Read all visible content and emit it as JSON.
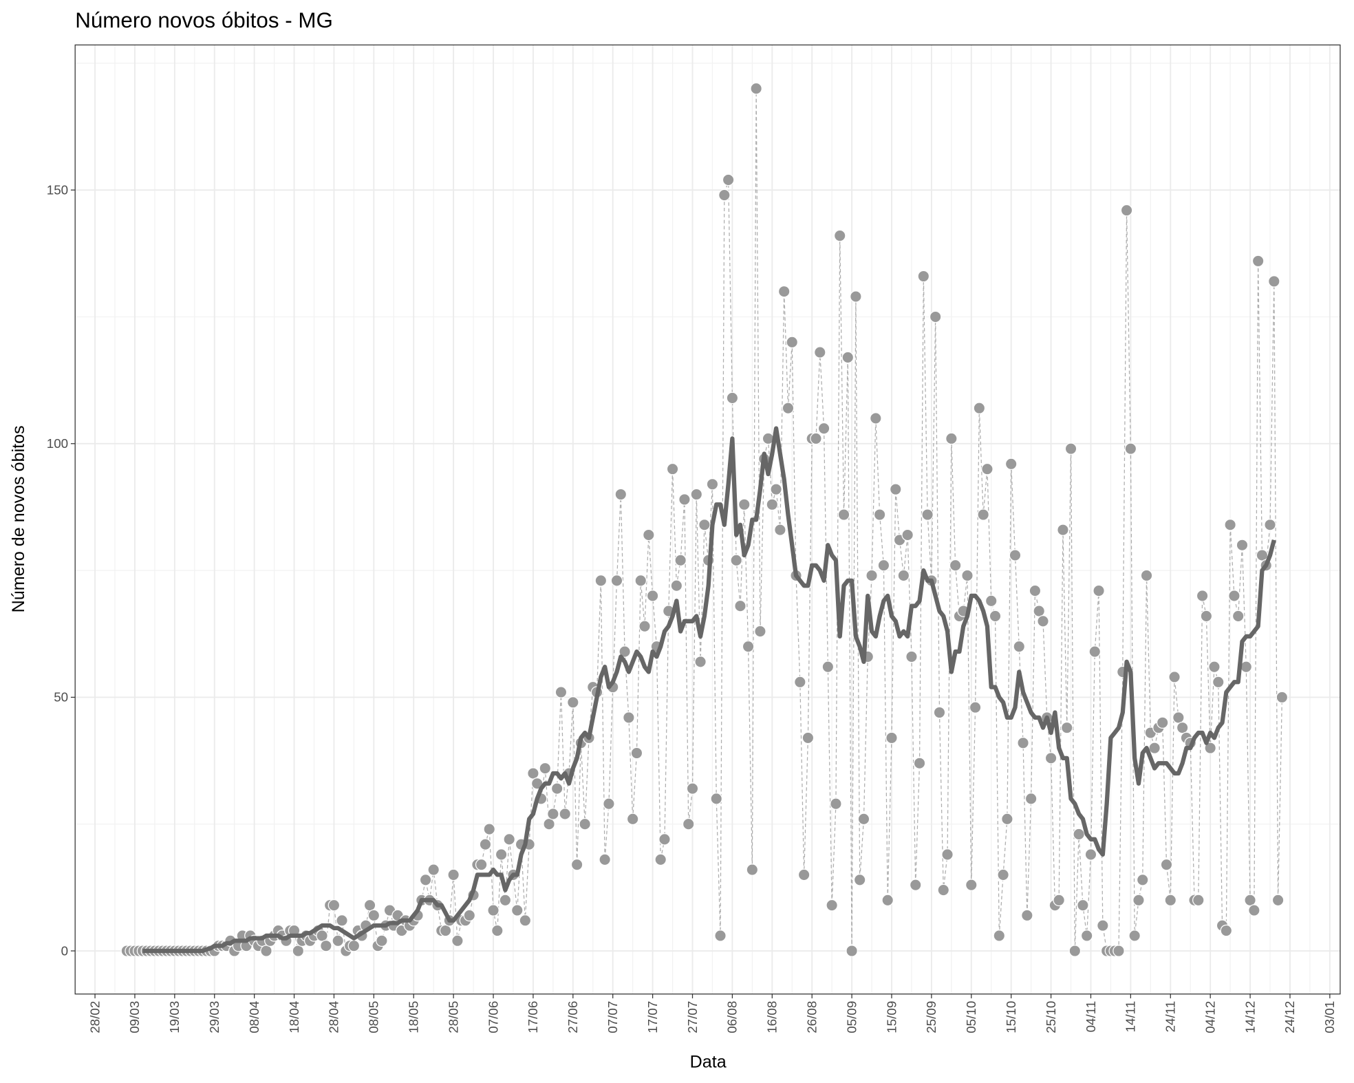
{
  "chart_data": {
    "type": "line",
    "title": "Número novos óbitos - MG",
    "x_label": "Data",
    "y_label": "Número de novos óbitos",
    "categories": [
      "28/02",
      null,
      null,
      null,
      null,
      null,
      null,
      null,
      null,
      null,
      "09/03",
      null,
      null,
      null,
      null,
      null,
      null,
      null,
      null,
      null,
      "19/03",
      null,
      null,
      null,
      null,
      null,
      null,
      null,
      null,
      null,
      "29/03",
      null,
      null,
      null,
      null,
      null,
      null,
      null,
      null,
      null,
      "08/04",
      null,
      null,
      null,
      null,
      null,
      null,
      null,
      null,
      null,
      "18/04",
      null,
      null,
      null,
      null,
      null,
      null,
      null,
      null,
      null,
      "28/04",
      null,
      null,
      null,
      null,
      null,
      null,
      null,
      null,
      null,
      "08/05",
      null,
      null,
      null,
      null,
      null,
      null,
      null,
      null,
      null,
      "18/05",
      null,
      null,
      null,
      null,
      null,
      null,
      null,
      null,
      null,
      "28/05",
      null,
      null,
      null,
      null,
      null,
      null,
      null,
      null,
      null,
      "07/06",
      null,
      null,
      null,
      null,
      null,
      null,
      null,
      null,
      null,
      "17/06",
      null,
      null,
      null,
      null,
      null,
      null,
      null,
      null,
      null,
      "27/06",
      null,
      null,
      null,
      null,
      null,
      null,
      null,
      null,
      null,
      "07/07",
      null,
      null,
      null,
      null,
      null,
      null,
      null,
      null,
      null,
      "17/07",
      null,
      null,
      null,
      null,
      null,
      null,
      null,
      null,
      null,
      "27/07",
      null,
      null,
      null,
      null,
      null,
      null,
      null,
      null,
      null,
      "06/08",
      null,
      null,
      null,
      null,
      null,
      null,
      null,
      null,
      null,
      "16/08",
      null,
      null,
      null,
      null,
      null,
      null,
      null,
      null,
      null,
      "26/08",
      null,
      null,
      null,
      null,
      null,
      null,
      null,
      null,
      null,
      "05/09",
      null,
      null,
      null,
      null,
      null,
      null,
      null,
      null,
      null,
      "15/09",
      null,
      null,
      null,
      null,
      null,
      null,
      null,
      null,
      null,
      "25/09",
      null,
      null,
      null,
      null,
      null,
      null,
      null,
      null,
      null,
      "05/10",
      null,
      null,
      null,
      null,
      null,
      null,
      null,
      null,
      null,
      "15/10",
      null,
      null,
      null,
      null,
      null,
      null,
      null,
      null,
      null,
      "25/10",
      null,
      null,
      null,
      null,
      null,
      null,
      null,
      null,
      null,
      "04/11",
      null,
      null,
      null,
      null,
      null,
      null,
      null,
      null,
      null,
      "14/11",
      null,
      null,
      null,
      null,
      null,
      null,
      null,
      null,
      null,
      "24/11",
      null,
      null,
      null,
      null,
      null,
      null,
      null,
      null,
      null,
      "04/12",
      null,
      null,
      null,
      null,
      null,
      null,
      null,
      null,
      null,
      "14/12",
      null,
      null,
      null,
      null,
      null,
      null,
      null,
      null,
      null,
      "24/12",
      null,
      null,
      null,
      null,
      null,
      null,
      null,
      null,
      null,
      "03/01"
    ],
    "series": [
      {
        "color": "#999999",
        "dashed": true,
        "points": true,
        "values": [
          null,
          null,
          null,
          null,
          null,
          null,
          null,
          null,
          0,
          0,
          0,
          0,
          0,
          0,
          0,
          0,
          0,
          0,
          0,
          0,
          0,
          0,
          0,
          0,
          0,
          0,
          0,
          0,
          0,
          0,
          0,
          1,
          1,
          1,
          2,
          0,
          1,
          3,
          1,
          3,
          2,
          1,
          2,
          0,
          2,
          3,
          4,
          3,
          2,
          4,
          4,
          0,
          2,
          3,
          2,
          3,
          4,
          3,
          1,
          9,
          9,
          2,
          6,
          0,
          1,
          1,
          4,
          3,
          5,
          9,
          7,
          1,
          2,
          5,
          8,
          5,
          7,
          4,
          6,
          5,
          6,
          7,
          10,
          14,
          10,
          16,
          9,
          4,
          4,
          6,
          15,
          2,
          6,
          6,
          7,
          11,
          17,
          17,
          21,
          24,
          8,
          4,
          19,
          10,
          22,
          15,
          8,
          21,
          6,
          21,
          35,
          33,
          30,
          36,
          25,
          27,
          32,
          51,
          27,
          35,
          49,
          17,
          41,
          25,
          42,
          52,
          51,
          73,
          18,
          29,
          52,
          73,
          90,
          59,
          46,
          26,
          39,
          73,
          64,
          82,
          70,
          60,
          18,
          22,
          67,
          95,
          72,
          77,
          89,
          25,
          32,
          90,
          57,
          84,
          77,
          92,
          30,
          3,
          149,
          152,
          109,
          77,
          68,
          88,
          60,
          16,
          170,
          63,
          97,
          101,
          88,
          91,
          83,
          130,
          107,
          120,
          74,
          53,
          15,
          42,
          101,
          101,
          118,
          103,
          56,
          9,
          29,
          141,
          86,
          117,
          0,
          129,
          14,
          26,
          58,
          74,
          105,
          86,
          76,
          10,
          42,
          91,
          81,
          74,
          82,
          58,
          13,
          37,
          133,
          86,
          73,
          125,
          47,
          12,
          19,
          101,
          76,
          66,
          67,
          74,
          13,
          48,
          107,
          86,
          95,
          69,
          66,
          3,
          15,
          26,
          96,
          78,
          60,
          41,
          7,
          30,
          71,
          67,
          65,
          46,
          38,
          9,
          10,
          83,
          44,
          99,
          0,
          23,
          9,
          3,
          19,
          59,
          71,
          5,
          0,
          0,
          0,
          0,
          55,
          146,
          99,
          3,
          10,
          14,
          74,
          43,
          40,
          44,
          45,
          17,
          10,
          54,
          46,
          44,
          42,
          41,
          10,
          10,
          70,
          66,
          40,
          56,
          53,
          5,
          4,
          84,
          70,
          66,
          80,
          56,
          10,
          8,
          136,
          78,
          76,
          84,
          132,
          10,
          50,
          null,
          null,
          null,
          null,
          null,
          null,
          null,
          null,
          null,
          null,
          null,
          null
        ]
      },
      {
        "color": "#666666",
        "dashed": false,
        "points": false,
        "values": [
          null,
          null,
          null,
          null,
          null,
          null,
          null,
          null,
          null,
          null,
          null,
          null,
          0,
          0,
          0,
          0,
          0,
          0,
          0,
          0,
          0,
          0,
          0,
          0,
          0,
          0,
          0,
          0,
          0.3,
          0.5,
          1,
          1,
          1,
          1.5,
          1.5,
          2,
          2,
          2,
          2,
          2.5,
          2.5,
          2.5,
          2.5,
          3,
          3,
          3,
          3,
          2.5,
          2.5,
          3,
          3,
          3,
          3,
          3.5,
          3.5,
          4,
          4.5,
          5,
          5,
          5,
          4.5,
          4.5,
          4,
          3.5,
          3,
          2.5,
          3,
          3.5,
          4,
          4.5,
          5,
          5,
          5,
          5,
          5.5,
          5.5,
          5.5,
          6,
          6,
          6,
          7,
          8,
          10,
          10,
          10,
          10,
          9,
          9,
          7.5,
          6,
          6,
          7,
          8,
          9,
          10,
          12,
          15,
          15,
          15,
          15,
          16,
          15,
          15,
          12,
          14,
          15,
          15,
          19,
          21,
          26,
          27,
          30,
          32,
          33,
          33,
          35,
          35,
          34,
          35,
          33,
          36,
          38,
          42,
          43,
          42,
          46,
          50,
          54,
          56,
          52,
          53,
          55,
          58,
          57,
          55,
          57,
          59,
          58,
          56,
          55,
          59,
          58,
          60,
          63,
          64,
          66,
          69,
          63,
          65,
          65,
          65,
          66,
          62,
          66,
          72,
          84,
          88,
          88,
          84,
          92,
          101,
          82,
          84,
          78,
          80,
          85,
          85,
          91,
          98,
          94,
          98,
          103,
          98,
          93,
          86,
          80,
          74,
          73,
          72,
          72,
          76,
          76,
          75,
          73,
          80,
          78,
          77,
          62,
          72,
          73,
          73,
          62,
          60,
          57,
          70,
          63,
          62,
          66,
          69,
          70,
          66,
          65,
          62,
          63,
          62,
          68,
          68,
          69,
          75,
          73,
          73,
          70,
          67,
          66,
          63,
          55,
          59,
          59,
          64,
          66,
          70,
          70,
          69,
          67,
          64,
          52,
          52,
          50,
          49,
          46,
          46,
          48,
          55,
          51,
          49,
          47,
          46,
          46,
          44,
          46,
          43,
          47,
          40,
          38,
          38,
          30,
          29,
          27,
          26,
          23,
          22,
          22,
          20,
          19,
          29,
          42,
          43,
          44,
          47,
          57,
          55,
          38,
          33,
          39,
          40,
          38,
          36,
          37,
          37,
          37,
          36,
          35,
          35,
          37,
          40,
          40,
          42,
          43,
          43,
          41,
          43,
          42,
          44,
          45,
          51,
          52,
          53,
          53,
          61,
          62,
          62,
          63,
          64,
          75,
          76,
          78,
          81,
          null,
          null,
          null,
          null,
          null,
          null,
          null,
          null,
          null,
          null,
          null,
          null,
          null,
          null
        ]
      }
    ],
    "ylim": [
      -8.5,
      178.6
    ],
    "yticks": [
      0,
      50,
      100,
      150
    ],
    "minor_yticks": [
      25,
      75,
      125,
      175
    ],
    "grid": true
  }
}
